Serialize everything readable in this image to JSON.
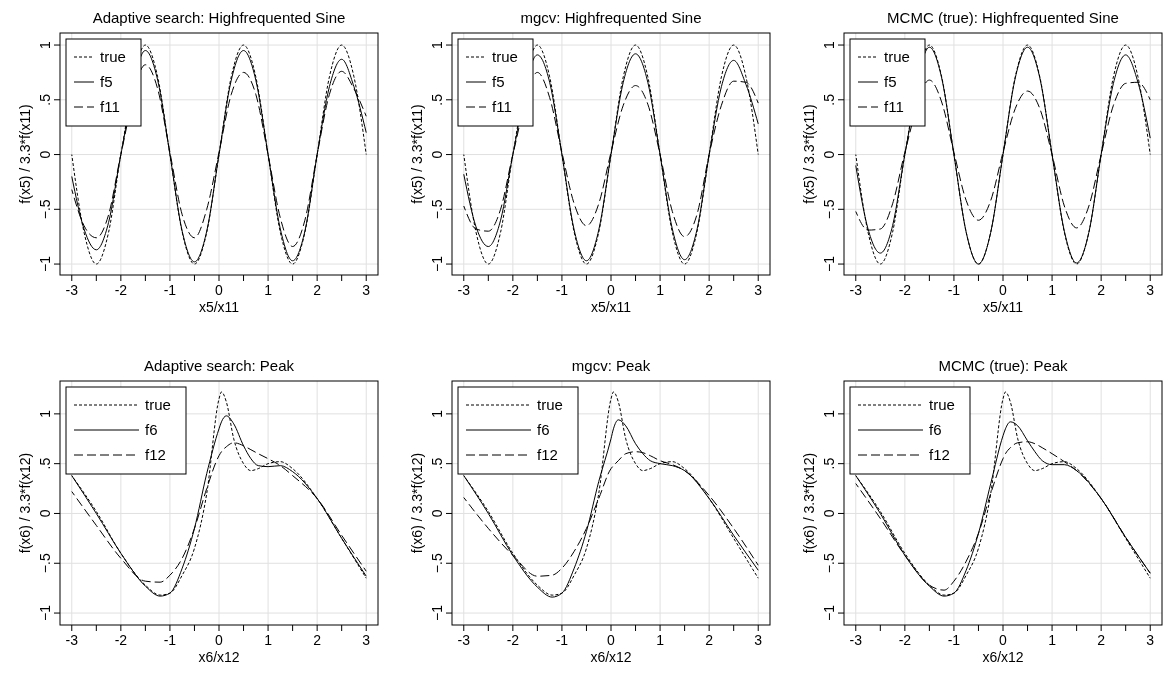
{
  "chart_data": [
    {
      "type": "line",
      "title": "Adaptive search: Highfrequented Sine",
      "xlabel": "x5/x11",
      "ylabel": "f(x5) / 3.3*f(x11)",
      "xlim": [
        -3.24,
        3.24
      ],
      "ylim": [
        -1.1,
        1.11
      ],
      "xticks": [
        -3,
        {
          "value": -2.5,
          "label": null
        },
        -2,
        {
          "value": -1.5,
          "label": null
        },
        -1,
        {
          "value": -0.5,
          "label": null
        },
        0,
        {
          "value": 0.5,
          "label": null
        },
        1,
        {
          "value": 1.5,
          "label": null
        },
        2,
        {
          "value": 2.5,
          "label": null
        },
        3
      ],
      "yticks": [
        {
          "value": -1,
          "label": "−1"
        },
        {
          "value": -0.5,
          "label": "−.5"
        },
        {
          "value": 0,
          "label": "0"
        },
        {
          "value": 0.5,
          "label": ".5"
        },
        {
          "value": 1,
          "label": "1"
        }
      ],
      "grid": true,
      "legend": "top left",
      "x": [
        -3,
        -2.75,
        -2.5,
        -2.25,
        -2,
        -1.75,
        -1.5,
        -1.25,
        -1,
        -0.75,
        -0.5,
        -0.25,
        0,
        0.25,
        0.5,
        0.75,
        1,
        1.25,
        1.5,
        1.75,
        2,
        2.25,
        2.5,
        2.75,
        3
      ],
      "series": [
        {
          "name": "true",
          "color": "#000000",
          "line_style": "dotted",
          "values": [
            0,
            -0.71,
            -1,
            -0.71,
            0,
            null,
            1,
            0.71,
            0,
            -0.71,
            -1,
            -0.71,
            0,
            0.71,
            1,
            0.71,
            0,
            -0.71,
            -1,
            -0.71,
            0,
            0.71,
            1,
            0.71,
            0
          ]
        },
        {
          "name": "f5",
          "color": "#000000",
          "line_style": "solid",
          "values": [
            -0.2,
            -0.68,
            -0.87,
            -0.62,
            0,
            null,
            0.95,
            0.68,
            0,
            -0.7,
            -0.98,
            -0.7,
            0,
            0.68,
            0.95,
            0.68,
            0,
            -0.68,
            -0.97,
            -0.7,
            0,
            0.62,
            0.87,
            0.62,
            0.2
          ]
        },
        {
          "name": "f11",
          "color": "#000000",
          "line_style": "dashed",
          "values": [
            -0.32,
            -0.65,
            -0.76,
            -0.55,
            0,
            null,
            0.82,
            0.6,
            0.02,
            -0.55,
            -0.76,
            -0.5,
            0.02,
            0.55,
            0.75,
            0.55,
            0,
            -0.58,
            -0.84,
            -0.6,
            0,
            0.55,
            0.76,
            0.6,
            0.35
          ]
        }
      ]
    },
    {
      "type": "line",
      "title": "mgcv: Highfrequented Sine",
      "xlabel": "x5/x11",
      "ylabel": "f(x5) / 3.3*f(x11)",
      "xlim": [
        -3.24,
        3.24
      ],
      "ylim": [
        -1.1,
        1.11
      ],
      "xticks": [
        -3,
        {
          "value": -2.5,
          "label": null
        },
        -2,
        {
          "value": -1.5,
          "label": null
        },
        -1,
        {
          "value": -0.5,
          "label": null
        },
        0,
        {
          "value": 0.5,
          "label": null
        },
        1,
        {
          "value": 1.5,
          "label": null
        },
        2,
        {
          "value": 2.5,
          "label": null
        },
        3
      ],
      "yticks": [
        {
          "value": -1,
          "label": "−1"
        },
        {
          "value": -0.5,
          "label": "−.5"
        },
        {
          "value": 0,
          "label": "0"
        },
        {
          "value": 0.5,
          "label": ".5"
        },
        {
          "value": 1,
          "label": "1"
        }
      ],
      "grid": true,
      "legend": "top left",
      "x": [
        -3,
        -2.75,
        -2.5,
        -2.25,
        -2,
        -1.75,
        -1.5,
        -1.25,
        -1,
        -0.75,
        -0.5,
        -0.25,
        0,
        0.25,
        0.5,
        0.75,
        1,
        1.25,
        1.5,
        1.75,
        2,
        2.25,
        2.5,
        2.75,
        3
      ],
      "series": [
        {
          "name": "true",
          "color": "#000000",
          "line_style": "dotted",
          "values": [
            0,
            -0.71,
            -1,
            -0.71,
            0,
            null,
            1,
            0.71,
            0,
            -0.71,
            -1,
            -0.71,
            0,
            0.71,
            1,
            0.71,
            0,
            -0.71,
            -1,
            -0.71,
            0,
            0.71,
            1,
            0.71,
            0
          ]
        },
        {
          "name": "f5",
          "color": "#000000",
          "line_style": "solid",
          "values": [
            -0.18,
            -0.66,
            -0.84,
            -0.6,
            0,
            null,
            0.91,
            0.66,
            0,
            -0.69,
            -0.97,
            -0.69,
            0,
            0.66,
            0.92,
            0.66,
            0,
            -0.68,
            -0.96,
            -0.69,
            0,
            0.62,
            0.86,
            0.64,
            0.28
          ]
        },
        {
          "name": "f11",
          "color": "#000000",
          "line_style": "dashed",
          "values": [
            -0.47,
            -0.68,
            -0.7,
            -0.5,
            0,
            null,
            0.75,
            0.52,
            0.02,
            -0.45,
            -0.65,
            -0.45,
            0.02,
            0.45,
            0.63,
            0.46,
            0,
            -0.52,
            -0.75,
            -0.55,
            0,
            0.45,
            0.67,
            0.66,
            0.47
          ]
        }
      ]
    },
    {
      "type": "line",
      "title": "MCMC (true): Highfrequented Sine",
      "xlabel": "x5/x11",
      "ylabel": "f(x5) / 3.3*f(x11)",
      "xlim": [
        -3.24,
        3.24
      ],
      "ylim": [
        -1.1,
        1.11
      ],
      "xticks": [
        -3,
        {
          "value": -2.5,
          "label": null
        },
        -2,
        {
          "value": -1.5,
          "label": null
        },
        -1,
        {
          "value": -0.5,
          "label": null
        },
        0,
        {
          "value": 0.5,
          "label": null
        },
        1,
        {
          "value": 1.5,
          "label": null
        },
        2,
        {
          "value": 2.5,
          "label": null
        },
        3
      ],
      "yticks": [
        {
          "value": -1,
          "label": "−1"
        },
        {
          "value": -0.5,
          "label": "−.5"
        },
        {
          "value": 0,
          "label": "0"
        },
        {
          "value": 0.5,
          "label": ".5"
        },
        {
          "value": 1,
          "label": "1"
        }
      ],
      "grid": true,
      "legend": "top left",
      "x": [
        -3,
        -2.75,
        -2.5,
        -2.25,
        -2,
        -1.75,
        -1.5,
        -1.25,
        -1,
        -0.75,
        -0.5,
        -0.25,
        0,
        0.25,
        0.5,
        0.75,
        1,
        1.25,
        1.5,
        1.75,
        2,
        2.25,
        2.5,
        2.75,
        3
      ],
      "series": [
        {
          "name": "true",
          "color": "#000000",
          "line_style": "dotted",
          "values": [
            0,
            -0.71,
            -1,
            -0.71,
            0,
            null,
            1,
            0.71,
            0,
            -0.71,
            -1,
            -0.71,
            0,
            0.71,
            1,
            0.71,
            0,
            -0.71,
            -1,
            -0.71,
            0,
            0.71,
            1,
            0.71,
            0
          ]
        },
        {
          "name": "f5",
          "color": "#000000",
          "line_style": "solid",
          "values": [
            -0.1,
            -0.68,
            -0.9,
            -0.65,
            0,
            null,
            0.98,
            0.7,
            0,
            -0.71,
            -1,
            -0.71,
            0,
            0.7,
            0.98,
            0.7,
            0,
            -0.7,
            -0.99,
            -0.71,
            0,
            0.65,
            0.91,
            0.66,
            0.15
          ]
        },
        {
          "name": "f11",
          "color": "#000000",
          "line_style": "dashed",
          "values": [
            -0.52,
            -0.69,
            -0.68,
            -0.45,
            0.02,
            null,
            0.68,
            0.48,
            0.02,
            -0.42,
            -0.6,
            -0.42,
            0.02,
            0.42,
            0.58,
            0.42,
            0,
            -0.47,
            -0.67,
            -0.47,
            0,
            0.45,
            0.65,
            0.66,
            0.5
          ]
        }
      ]
    },
    {
      "type": "line",
      "title": "Adaptive search: Peak",
      "xlabel": "x6/x12",
      "ylabel": "f(x6) / 3.3*f(x12)",
      "xlim": [
        -3.24,
        3.24
      ],
      "ylim": [
        -1.12,
        1.33
      ],
      "xticks": [
        -3,
        {
          "value": -2.5,
          "label": null
        },
        -2,
        {
          "value": -1.5,
          "label": null
        },
        -1,
        {
          "value": -0.5,
          "label": null
        },
        0,
        {
          "value": 0.5,
          "label": null
        },
        1,
        {
          "value": 1.5,
          "label": null
        },
        2,
        {
          "value": 2.5,
          "label": null
        },
        3
      ],
      "yticks": [
        {
          "value": -1,
          "label": "−1"
        },
        {
          "value": -0.5,
          "label": "−.5"
        },
        {
          "value": 0,
          "label": "0"
        },
        {
          "value": 0.5,
          "label": ".5"
        },
        {
          "value": 1,
          "label": "1"
        }
      ],
      "grid": true,
      "legend": "top left",
      "x": [
        -3,
        -2.5,
        -2,
        -1.5,
        -1.2,
        -1,
        -0.75,
        -0.5,
        -0.25,
        0,
        0.05,
        0.15,
        0.3,
        0.5,
        0.65,
        0.8,
        1,
        1.25,
        1.5,
        2,
        2.5,
        3
      ],
      "series": [
        {
          "name": "true",
          "color": "#000000",
          "line_style": "dotted",
          "values": [
            0.38,
            0.02,
            -0.4,
            -0.72,
            -0.82,
            -0.8,
            -0.62,
            -0.35,
            0.2,
            1.15,
            1.22,
            1.12,
            0.75,
            0.5,
            0.43,
            0.45,
            0.5,
            0.52,
            0.45,
            0.15,
            -0.25,
            -0.65
          ]
        },
        {
          "name": "f6",
          "color": "#000000",
          "line_style": "solid",
          "values": [
            0.38,
            0,
            -0.4,
            -0.73,
            -0.83,
            -0.8,
            -0.55,
            -0.15,
            0.4,
            0.85,
            0.92,
            0.98,
            0.9,
            0.68,
            0.55,
            0.48,
            0.47,
            0.48,
            0.42,
            0.15,
            -0.25,
            -0.63
          ]
        },
        {
          "name": "f12",
          "color": "#000000",
          "line_style": "dashed",
          "values": [
            0.22,
            -0.12,
            -0.45,
            -0.68,
            -0.69,
            -0.62,
            -0.45,
            -0.15,
            0.25,
            0.58,
            0.62,
            0.67,
            0.71,
            0.68,
            0.64,
            0.6,
            0.55,
            0.48,
            0.38,
            0.15,
            -0.22,
            -0.58
          ]
        }
      ]
    },
    {
      "type": "line",
      "title": "mgcv: Peak",
      "xlabel": "x6/x12",
      "ylabel": "f(x6) / 3.3*f(x12)",
      "xlim": [
        -3.24,
        3.24
      ],
      "ylim": [
        -1.12,
        1.33
      ],
      "xticks": [
        -3,
        {
          "value": -2.5,
          "label": null
        },
        -2,
        {
          "value": -1.5,
          "label": null
        },
        -1,
        {
          "value": -0.5,
          "label": null
        },
        0,
        {
          "value": 0.5,
          "label": null
        },
        1,
        {
          "value": 1.5,
          "label": null
        },
        2,
        {
          "value": 2.5,
          "label": null
        },
        3
      ],
      "yticks": [
        {
          "value": -1,
          "label": "−1"
        },
        {
          "value": -0.5,
          "label": "−.5"
        },
        {
          "value": 0,
          "label": "0"
        },
        {
          "value": 0.5,
          "label": ".5"
        },
        {
          "value": 1,
          "label": "1"
        }
      ],
      "grid": true,
      "legend": "top left",
      "x": [
        -3,
        -2.5,
        -2,
        -1.5,
        -1.2,
        -1,
        -0.75,
        -0.5,
        -0.25,
        0,
        0.05,
        0.15,
        0.3,
        0.5,
        0.65,
        0.8,
        1,
        1.25,
        1.5,
        2,
        2.5,
        3
      ],
      "series": [
        {
          "name": "true",
          "color": "#000000",
          "line_style": "dotted",
          "values": [
            0.38,
            0.02,
            -0.4,
            -0.72,
            -0.82,
            -0.8,
            -0.62,
            -0.35,
            0.2,
            1.15,
            1.22,
            1.12,
            0.75,
            0.5,
            0.43,
            0.45,
            0.5,
            0.52,
            0.45,
            0.15,
            -0.25,
            -0.65
          ]
        },
        {
          "name": "f6",
          "color": "#000000",
          "line_style": "solid",
          "values": [
            0.38,
            0,
            -0.42,
            -0.74,
            -0.84,
            -0.8,
            -0.55,
            -0.18,
            0.32,
            0.75,
            0.85,
            0.94,
            0.88,
            0.7,
            0.6,
            0.53,
            0.5,
            0.48,
            0.43,
            0.15,
            -0.22,
            -0.57
          ]
        },
        {
          "name": "f12",
          "color": "#000000",
          "line_style": "dashed",
          "values": [
            0.16,
            -0.15,
            -0.42,
            -0.63,
            -0.62,
            -0.55,
            -0.38,
            -0.15,
            0.15,
            0.45,
            0.48,
            0.53,
            0.6,
            0.62,
            0.61,
            0.58,
            0.53,
            0.49,
            0.43,
            0.18,
            -0.15,
            -0.52
          ]
        }
      ]
    },
    {
      "type": "line",
      "title": "MCMC (true): Peak",
      "xlabel": "x6/x12",
      "ylabel": "f(x6) / 3.3*f(x12)",
      "xlim": [
        -3.24,
        3.24
      ],
      "ylim": [
        -1.12,
        1.33
      ],
      "xticks": [
        -3,
        {
          "value": -2.5,
          "label": null
        },
        -2,
        {
          "value": -1.5,
          "label": null
        },
        -1,
        {
          "value": -0.5,
          "label": null
        },
        0,
        {
          "value": 0.5,
          "label": null
        },
        1,
        {
          "value": 1.5,
          "label": null
        },
        2,
        {
          "value": 2.5,
          "label": null
        },
        3
      ],
      "yticks": [
        {
          "value": -1,
          "label": "−1"
        },
        {
          "value": -0.5,
          "label": "−.5"
        },
        {
          "value": 0,
          "label": "0"
        },
        {
          "value": 0.5,
          "label": ".5"
        },
        {
          "value": 1,
          "label": "1"
        }
      ],
      "grid": true,
      "legend": "top left",
      "x": [
        -3,
        -2.5,
        -2,
        -1.5,
        -1.2,
        -1,
        -0.75,
        -0.5,
        -0.25,
        0,
        0.05,
        0.15,
        0.3,
        0.5,
        0.65,
        0.8,
        1,
        1.25,
        1.5,
        2,
        2.5,
        3
      ],
      "series": [
        {
          "name": "true",
          "color": "#000000",
          "line_style": "dotted",
          "values": [
            0.38,
            0.02,
            -0.4,
            -0.72,
            -0.82,
            -0.8,
            -0.62,
            -0.35,
            0.2,
            1.15,
            1.22,
            1.12,
            0.75,
            0.5,
            0.43,
            0.45,
            0.5,
            0.52,
            0.45,
            0.15,
            -0.25,
            -0.65
          ]
        },
        {
          "name": "f6",
          "color": "#000000",
          "line_style": "solid",
          "values": [
            0.38,
            0,
            -0.42,
            -0.73,
            -0.83,
            -0.8,
            -0.57,
            -0.2,
            0.3,
            0.78,
            0.85,
            0.92,
            0.88,
            0.73,
            0.62,
            0.53,
            0.49,
            0.49,
            0.43,
            0.15,
            -0.24,
            -0.6
          ]
        },
        {
          "name": "f12",
          "color": "#000000",
          "line_style": "dashed",
          "values": [
            0.3,
            -0.05,
            -0.42,
            -0.72,
            -0.77,
            -0.68,
            -0.48,
            -0.2,
            0.2,
            0.55,
            0.6,
            0.66,
            0.71,
            0.72,
            0.7,
            0.66,
            0.6,
            0.52,
            0.43,
            0.15,
            -0.24,
            -0.6
          ]
        }
      ]
    }
  ]
}
